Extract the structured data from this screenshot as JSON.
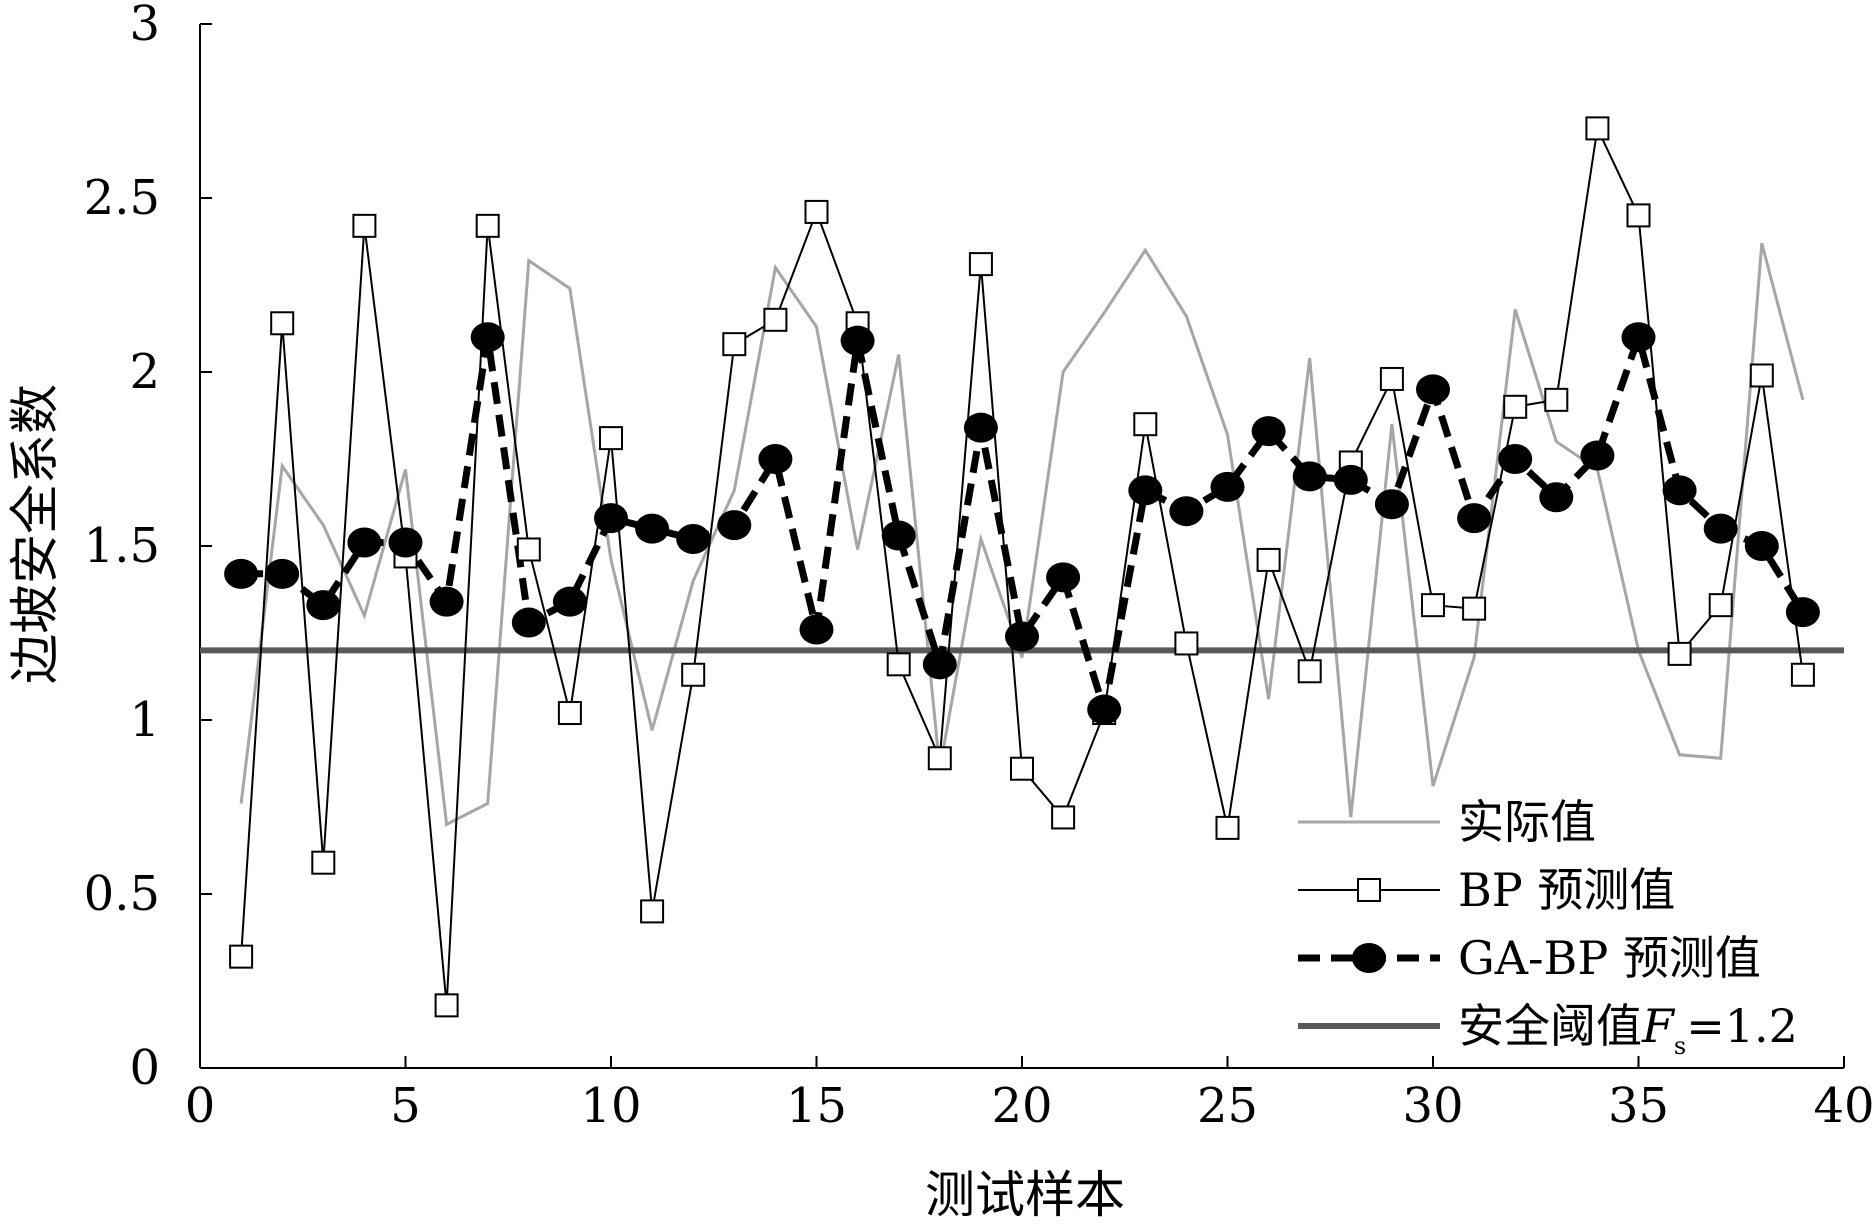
{
  "chart_data": {
    "type": "line",
    "xlabel": "测试样本",
    "ylabel": "边坡安全系数",
    "xlim": [
      0,
      40
    ],
    "ylim": [
      0,
      3
    ],
    "xticks": [
      0,
      5,
      10,
      15,
      20,
      25,
      30,
      35,
      40
    ],
    "xtick_labels": [
      "0",
      "5",
      "10",
      "15",
      "20",
      "25",
      "30",
      "35",
      "40"
    ],
    "yticks": [
      0,
      0.5,
      1,
      1.5,
      2,
      2.5,
      3
    ],
    "ytick_labels": [
      "0",
      "0.5",
      "1",
      "1.5",
      "2",
      "2.5",
      "3"
    ],
    "grid": false,
    "legend_position": "bottom-right",
    "series": [
      {
        "name": "实际值",
        "style": "thin-gray-line",
        "color": "#a6a6a6",
        "x": [
          1,
          2,
          3,
          4,
          5,
          6,
          7,
          8,
          9,
          10,
          11,
          12,
          13,
          14,
          15,
          16,
          17,
          18,
          19,
          20,
          21,
          22,
          23,
          24,
          25,
          26,
          27,
          28,
          29,
          30,
          31,
          32,
          33,
          34,
          35,
          36,
          37,
          38,
          39
        ],
        "y": [
          0.76,
          1.73,
          1.56,
          1.3,
          1.72,
          0.7,
          0.76,
          2.32,
          2.24,
          1.46,
          0.97,
          1.4,
          1.66,
          2.3,
          2.13,
          1.49,
          2.05,
          0.86,
          1.52,
          1.18,
          2.0,
          2.17,
          2.35,
          2.16,
          1.82,
          1.06,
          2.04,
          0.72,
          1.85,
          0.81,
          1.18,
          2.18,
          1.8,
          1.72,
          1.2,
          0.9,
          0.89,
          2.37,
          1.92
        ]
      },
      {
        "name": "BP 预测值",
        "style": "thin-black-line-open-square",
        "color": "#000000",
        "x": [
          1,
          2,
          3,
          4,
          5,
          6,
          7,
          8,
          9,
          10,
          11,
          12,
          13,
          14,
          15,
          16,
          17,
          18,
          19,
          20,
          21,
          22,
          23,
          24,
          25,
          26,
          27,
          28,
          29,
          30,
          31,
          32,
          33,
          34,
          35,
          36,
          37,
          38,
          39
        ],
        "y": [
          0.32,
          2.14,
          0.59,
          2.42,
          1.47,
          0.18,
          2.42,
          1.49,
          1.02,
          1.81,
          0.45,
          1.13,
          2.08,
          2.15,
          2.46,
          2.14,
          1.16,
          0.89,
          2.31,
          0.86,
          0.72,
          1.02,
          1.85,
          1.22,
          0.69,
          1.46,
          1.14,
          1.74,
          1.98,
          1.33,
          1.32,
          1.9,
          1.92,
          2.7,
          2.45,
          1.19,
          1.33,
          1.99,
          1.13
        ]
      },
      {
        "name": "GA-BP 预测值",
        "style": "thick-dashed-line-filled-circle",
        "color": "#000000",
        "x": [
          1,
          2,
          3,
          4,
          5,
          6,
          7,
          8,
          9,
          10,
          11,
          12,
          13,
          14,
          15,
          16,
          17,
          18,
          19,
          20,
          21,
          22,
          23,
          24,
          25,
          26,
          27,
          28,
          29,
          30,
          31,
          32,
          33,
          34,
          35,
          36,
          37,
          38,
          39
        ],
        "y": [
          1.42,
          1.42,
          1.33,
          1.51,
          1.51,
          1.34,
          2.1,
          1.28,
          1.34,
          1.58,
          1.55,
          1.52,
          1.56,
          1.75,
          1.26,
          2.09,
          1.53,
          1.16,
          1.84,
          1.24,
          1.41,
          1.03,
          1.66,
          1.6,
          1.67,
          1.83,
          1.7,
          1.69,
          1.62,
          1.95,
          1.58,
          1.75,
          1.64,
          1.76,
          2.1,
          1.66,
          1.55,
          1.5,
          1.31
        ]
      },
      {
        "name": "安全阈值F s =1.2",
        "legend_label": {
          "prefix": "安全阈值",
          "italic": "F",
          "subscript": "s",
          "suffix": "=1.2"
        },
        "style": "thick-gray-hline",
        "color": "#595959",
        "x": [
          0,
          40
        ],
        "y": [
          1.2,
          1.2
        ]
      }
    ]
  }
}
